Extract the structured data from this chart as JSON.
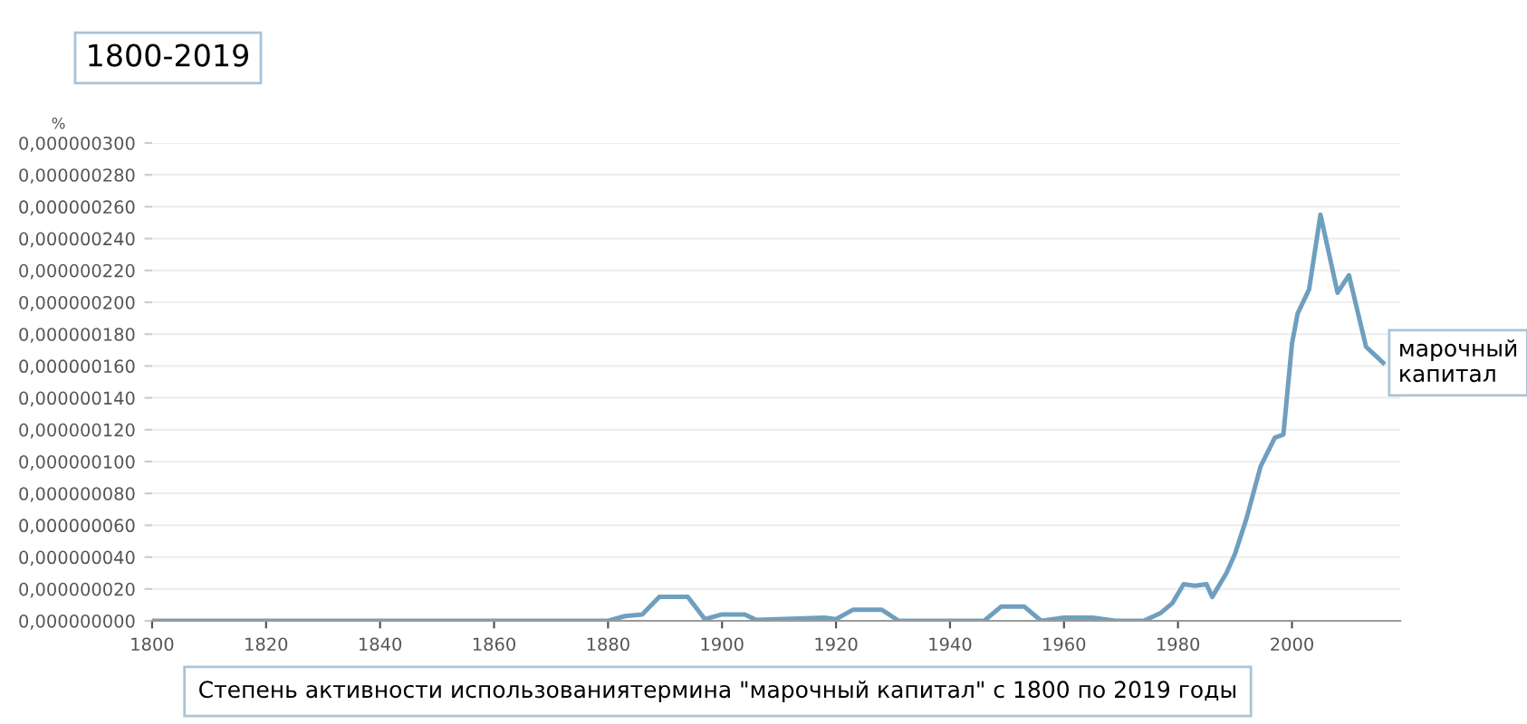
{
  "chart_data": {
    "type": "line",
    "title": "1800-2019",
    "ylabel": "%",
    "annotations": [
      "Степень активности использованиятермина \"марочный капитал\" с 1800 по 2019 годы"
    ],
    "x": [
      1800,
      1880,
      1883,
      1886,
      1889,
      1894,
      1897,
      1900,
      1904,
      1906,
      1918,
      1920,
      1923,
      1928,
      1931,
      1946,
      1949,
      1953,
      1956,
      1960,
      1965,
      1969,
      1974,
      1977,
      1979,
      1981,
      1983,
      1985,
      1986,
      1988.5,
      1990,
      1992,
      1994.5,
      1997,
      1998.5,
      2000,
      2001,
      2003,
      2005,
      2008,
      2010,
      2013,
      2016
    ],
    "series": [
      {
        "name": "марочный капитал",
        "color": "#6f9fbf",
        "values": [
          0,
          0,
          3e-09,
          4e-09,
          1.5e-08,
          1.5e-08,
          1e-09,
          4e-09,
          4e-09,
          5e-10,
          2e-09,
          1e-09,
          7e-09,
          7e-09,
          0,
          0,
          9e-09,
          9e-09,
          0,
          2e-09,
          2e-09,
          0,
          0,
          5e-09,
          1.1e-08,
          2.3e-08,
          2.2e-08,
          2.3e-08,
          1.5e-08,
          3e-08,
          4.2e-08,
          6.4e-08,
          9.7e-08,
          1.15e-07,
          1.17e-07,
          1.74e-07,
          1.93e-07,
          2.08e-07,
          2.55e-07,
          2.06e-07,
          2.17e-07,
          1.72e-07,
          1.62e-07
        ]
      }
    ],
    "xlim": [
      1800,
      2019
    ],
    "xticks": [
      1800,
      1820,
      1840,
      1860,
      1880,
      1900,
      1920,
      1940,
      1960,
      1980,
      2000
    ],
    "ylim": [
      0,
      3e-07
    ],
    "yticks": [
      {
        "value": 0,
        "label": "0,000000000"
      },
      {
        "value": 2e-08,
        "label": "0,000000020"
      },
      {
        "value": 4e-08,
        "label": "0,000000040"
      },
      {
        "value": 6e-08,
        "label": "0,000000060"
      },
      {
        "value": 8e-08,
        "label": "0,000000080"
      },
      {
        "value": 1e-07,
        "label": "0,000000100"
      },
      {
        "value": 1.2e-07,
        "label": "0,000000120"
      },
      {
        "value": 1.4e-07,
        "label": "0,000000140"
      },
      {
        "value": 1.6e-07,
        "label": "0,000000160"
      },
      {
        "value": 1.8e-07,
        "label": "0,000000180"
      },
      {
        "value": 2e-07,
        "label": "0,000000200"
      },
      {
        "value": 2.2e-07,
        "label": "0,000000220"
      },
      {
        "value": 2.4e-07,
        "label": "0,000000240"
      },
      {
        "value": 2.6e-07,
        "label": "0,000000260"
      },
      {
        "value": 2.8e-07,
        "label": "0,000000280"
      },
      {
        "value": 3e-07,
        "label": "0,000000300"
      }
    ],
    "grid": "y"
  }
}
